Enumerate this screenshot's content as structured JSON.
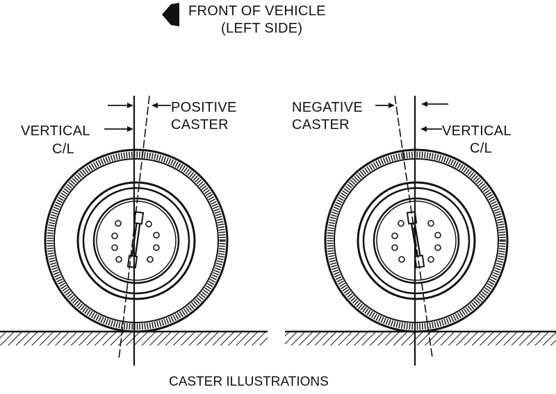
{
  "header": {
    "line1": "FRONT OF VEHICLE",
    "line2": "(LEFT SIDE)"
  },
  "left_wheel": {
    "vertical_label_1": "VERTICAL",
    "vertical_label_2": "C/L",
    "caster_label_1": "POSITIVE",
    "caster_label_2": "CASTER"
  },
  "right_wheel": {
    "caster_label_1": "NEGATIVE",
    "caster_label_2": "CASTER",
    "vertical_label_1": "VERTICAL",
    "vertical_label_2": "C/L"
  },
  "caption": "CASTER ILLUSTRATIONS",
  "colors": {
    "ink": "#111111",
    "background": "#ffffff"
  }
}
